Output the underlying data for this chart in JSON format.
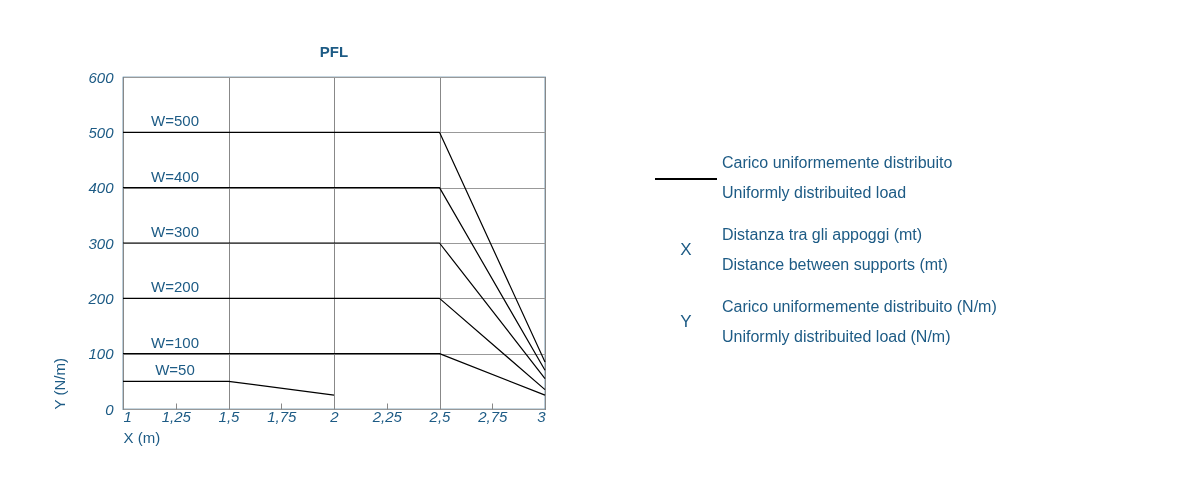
{
  "chart_data": {
    "type": "line",
    "title": "PFL",
    "xlabel": "X (m)",
    "ylabel": "Y (N/m)",
    "xlim": [
      1,
      3
    ],
    "ylim": [
      0,
      600
    ],
    "xticks": [
      1,
      {
        "value": 1.25,
        "label": "1,25"
      },
      {
        "value": 1.5,
        "label": "1,5"
      },
      {
        "value": 1.75,
        "label": "1,75"
      },
      2,
      {
        "value": 2.25,
        "label": "2,25"
      },
      {
        "value": 2.5,
        "label": "2,5"
      },
      {
        "value": 2.75,
        "label": "2,75"
      },
      3
    ],
    "yticks": [
      0,
      100,
      200,
      300,
      400,
      500,
      600
    ],
    "grid": true,
    "line_style": "solid",
    "series": [
      {
        "name": "W=500",
        "color": "#000000",
        "x": [
          1,
          2.5,
          3
        ],
        "values": [
          500,
          500,
          85
        ]
      },
      {
        "name": "W=400",
        "color": "#000000",
        "x": [
          1,
          2.5,
          3
        ],
        "values": [
          400,
          400,
          70
        ]
      },
      {
        "name": "W=300",
        "color": "#000000",
        "x": [
          1,
          2.5,
          3
        ],
        "values": [
          300,
          300,
          55
        ]
      },
      {
        "name": "W=200",
        "color": "#000000",
        "x": [
          1,
          2.5,
          3
        ],
        "values": [
          200,
          200,
          35
        ]
      },
      {
        "name": "W=100",
        "color": "#000000",
        "x": [
          1,
          2.5,
          3
        ],
        "values": [
          100,
          100,
          25
        ]
      },
      {
        "name": "W=50",
        "color": "#000000",
        "x": [
          1,
          1.5,
          2
        ],
        "values": [
          50,
          50,
          25
        ]
      }
    ],
    "annotations": [
      "Carico uniformemente distribuito",
      "Uniformly distribuited load",
      "X",
      "Distanza tra gli appoggi (mt)",
      "Distance between supports (mt)",
      "Y",
      "Carico uniformemente distribuito (N/m)",
      "Uniformly distribuited load (N/m)"
    ]
  }
}
